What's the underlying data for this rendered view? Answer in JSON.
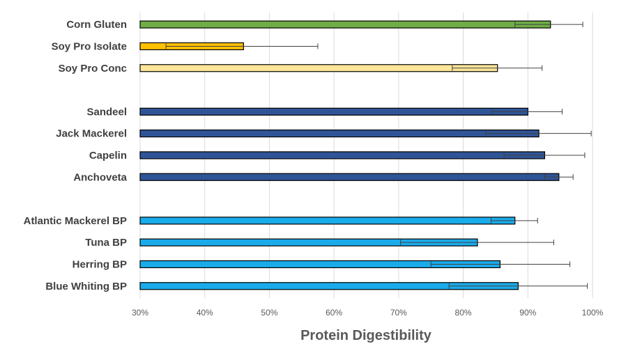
{
  "chart_data": {
    "type": "bar",
    "orientation": "horizontal",
    "title": "",
    "xlabel": "Protein Digestibility",
    "ylabel": "",
    "xlim": [
      30,
      100
    ],
    "x_unit": "%",
    "x_ticks": [
      "30%",
      "40%",
      "50%",
      "60%",
      "70%",
      "80%",
      "90%",
      "100%"
    ],
    "grid": "vertical",
    "legend": "none",
    "categories": [
      {
        "label": "Corn Gluten",
        "value": 93.5,
        "error_low": 88.0,
        "error_high": 98.5,
        "color": "#70ad47",
        "group": 1
      },
      {
        "label": "Soy Pro Isolate",
        "value": 46.0,
        "error_low": 34.0,
        "error_high": 57.5,
        "color": "#ffc000",
        "group": 1
      },
      {
        "label": "Soy Pro Conc",
        "value": 85.3,
        "error_low": 78.3,
        "error_high": 92.2,
        "color": "#ffe699",
        "group": 1
      },
      {
        "label": "Sandeel",
        "value": 90.0,
        "error_low": 84.5,
        "error_high": 95.3,
        "color": "#2f5597",
        "group": 2
      },
      {
        "label": "Jack Mackerel",
        "value": 91.7,
        "error_low": 83.5,
        "error_high": 99.8,
        "color": "#2f5597",
        "group": 2
      },
      {
        "label": "Capelin",
        "value": 92.6,
        "error_low": 86.3,
        "error_high": 98.8,
        "color": "#2f5597",
        "group": 2
      },
      {
        "label": "Anchoveta",
        "value": 94.8,
        "error_low": 92.6,
        "error_high": 97.0,
        "color": "#2f5597",
        "group": 2
      },
      {
        "label": "Atlantic Mackerel BP",
        "value": 88.0,
        "error_low": 84.3,
        "error_high": 91.5,
        "color": "#1aabea",
        "group": 3
      },
      {
        "label": "Tuna BP",
        "value": 82.2,
        "error_low": 70.3,
        "error_high": 94.0,
        "color": "#1aabea",
        "group": 3
      },
      {
        "label": "Herring BP",
        "value": 85.7,
        "error_low": 75.0,
        "error_high": 96.5,
        "color": "#1aabea",
        "group": 3
      },
      {
        "label": "Blue Whiting BP",
        "value": 88.5,
        "error_low": 77.8,
        "error_high": 99.2,
        "color": "#1aabea",
        "group": 3
      }
    ],
    "colors": {
      "gridline": "#d9d9d9",
      "bar_outline": "#000000",
      "error_bar": "#404040",
      "text": "#404040"
    }
  }
}
